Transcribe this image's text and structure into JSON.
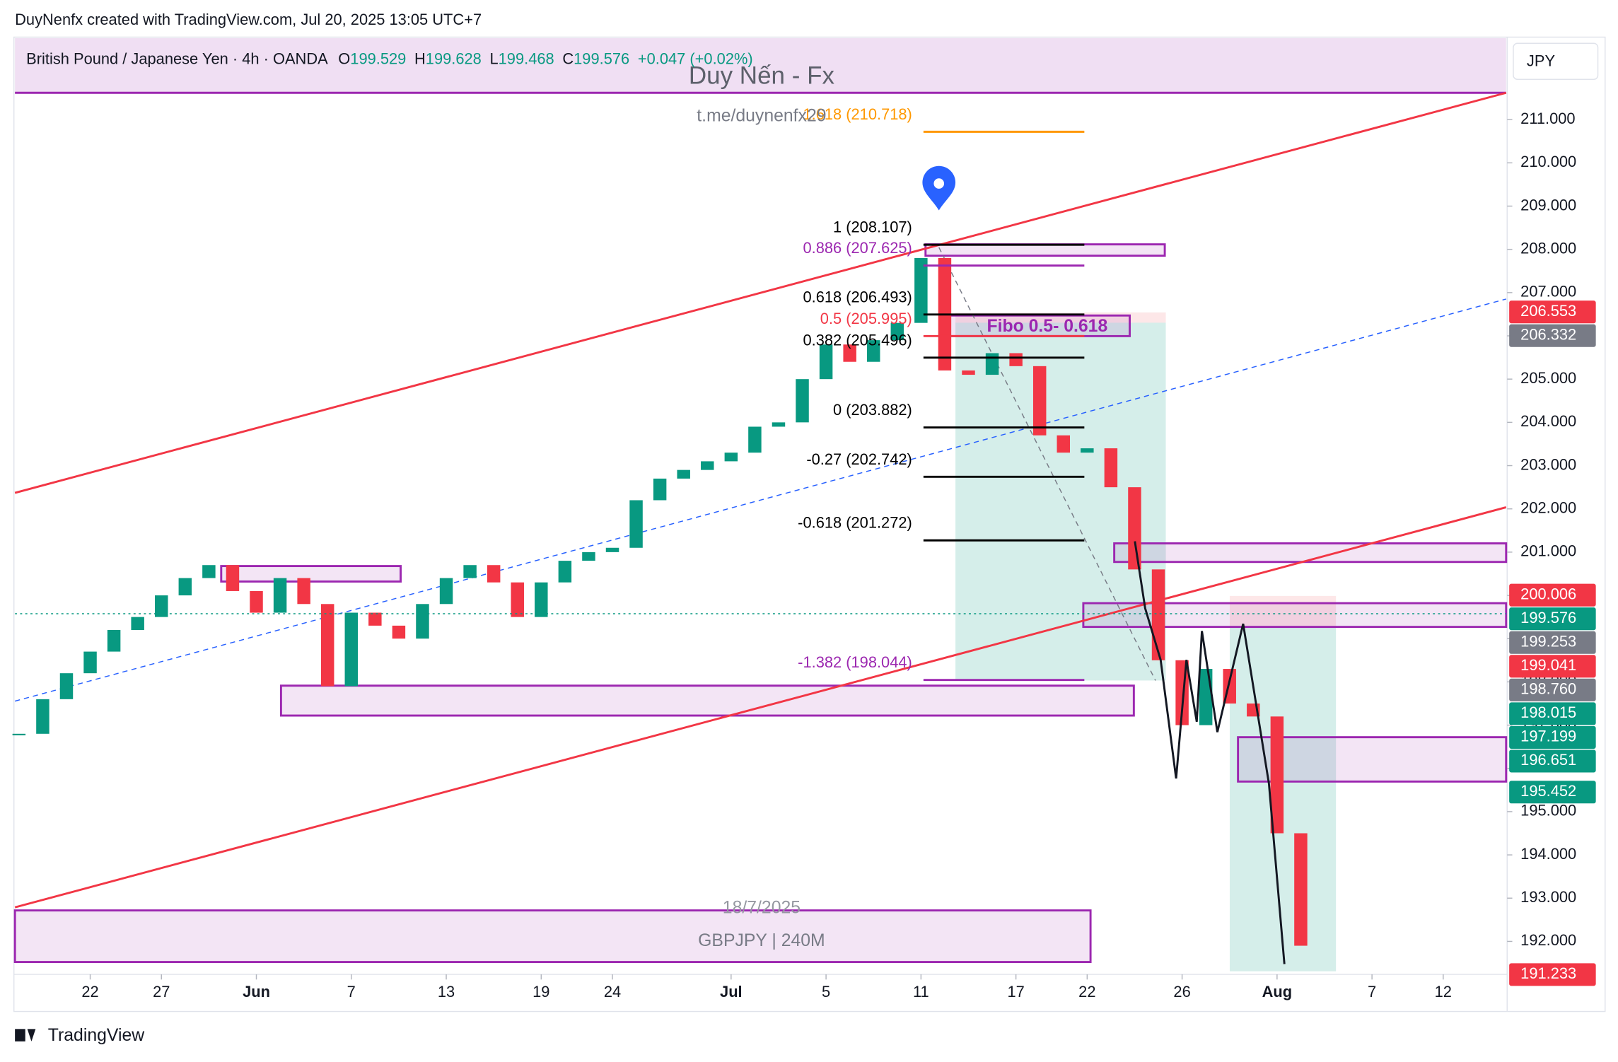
{
  "header": {
    "text": "DuyNenfx created with TradingView.com, Jul 20, 2025 13:05 UTC+7"
  },
  "footer": {
    "logo": "TradingView"
  },
  "chart_data": {
    "type": "candlestick",
    "title": "British Pound / Japanese Yen · 4h · OANDA",
    "ohlc": [
      {
        "label": "O",
        "value": 199.529
      },
      {
        "label": "H",
        "value": 199.628
      },
      {
        "label": "L",
        "value": 199.468
      },
      {
        "label": "C",
        "value": 199.576
      }
    ],
    "change": "+0.047 (+0.02%)",
    "currency": "JPY",
    "watermark": [
      "Duy Nến - Fx",
      "t.me/duynenfx29"
    ],
    "annotations": [
      "18/7/2025",
      "GBPJPY | 240M",
      "Fibo 0.5- 0.618"
    ],
    "x": [
      -3,
      -2,
      -1,
      0,
      1,
      2,
      3,
      4,
      5,
      6,
      7,
      8,
      9,
      10,
      11,
      12,
      13,
      14,
      15,
      16,
      17,
      18,
      19,
      20,
      21,
      22,
      23,
      24,
      25,
      26,
      27,
      28,
      29,
      30,
      31,
      32,
      33,
      34,
      35,
      36,
      37,
      38,
      39,
      40,
      41,
      42,
      43,
      44,
      45,
      46,
      47,
      48,
      49,
      50,
      51
    ],
    "values": [
      196.8,
      197.6,
      198.2,
      198.7,
      199.2,
      199.5,
      200.0,
      200.4,
      200.7,
      200.1,
      199.6,
      200.4,
      199.8,
      197.9,
      199.6,
      199.3,
      199.0,
      199.8,
      200.4,
      200.7,
      200.3,
      199.5,
      200.3,
      200.8,
      201.0,
      201.1,
      202.2,
      202.7,
      202.9,
      203.1,
      203.3,
      203.9,
      204.0,
      205.0,
      205.8,
      205.4,
      205.9,
      206.3,
      207.8,
      205.2,
      205.1,
      205.6,
      205.3,
      203.7,
      203.3,
      203.4,
      202.5,
      200.6,
      198.5,
      197.0,
      198.3,
      197.5,
      197.2,
      194.5,
      191.9
    ],
    "up_color": "#089981",
    "down_color": "#f23645",
    "xlim": [
      -3.17,
      59.65
    ],
    "xticks": [
      {
        "value": 0,
        "label": "22"
      },
      {
        "value": 3,
        "label": "27"
      },
      {
        "value": 7,
        "label": "Jun"
      },
      {
        "value": 11,
        "label": "7"
      },
      {
        "value": 15,
        "label": "13"
      },
      {
        "value": 19,
        "label": "19"
      },
      {
        "value": 22,
        "label": "24"
      },
      {
        "value": 27,
        "label": "Jul"
      },
      {
        "value": 31,
        "label": "5"
      },
      {
        "value": 35,
        "label": "11"
      },
      {
        "value": 39,
        "label": "17"
      },
      {
        "value": 42,
        "label": "22"
      },
      {
        "value": 46,
        "label": "26"
      },
      {
        "value": 50,
        "label": "Aug"
      },
      {
        "value": 54,
        "label": "7"
      },
      {
        "value": 57,
        "label": "12"
      }
    ],
    "ylim": [
      191.238,
      212.883
    ],
    "yticks": [
      {
        "value": 192,
        "label": "192.000"
      },
      {
        "value": 193,
        "label": "193.000"
      },
      {
        "value": 194,
        "label": "194.000"
      },
      {
        "value": 195,
        "label": "195.000"
      },
      {
        "value": 196,
        "label": "196.000"
      },
      {
        "value": 197,
        "label": "197.000"
      },
      {
        "value": 198,
        "label": "198.000"
      },
      {
        "value": 199,
        "label": "199.000"
      },
      {
        "value": 200,
        "label": "200.000"
      },
      {
        "value": 201,
        "label": "201.000"
      },
      {
        "value": 202,
        "label": "202.000"
      },
      {
        "value": 203,
        "label": "203.000"
      },
      {
        "value": 204,
        "label": "204.000"
      },
      {
        "value": 205,
        "label": "205.000"
      },
      {
        "value": 206,
        "label": "206.000"
      },
      {
        "value": 207,
        "label": "207.000"
      },
      {
        "value": 208,
        "label": "208.000"
      },
      {
        "value": 209,
        "label": "209.000"
      },
      {
        "value": 210,
        "label": "210.000"
      },
      {
        "value": 211,
        "label": "211.000"
      }
    ],
    "fib_levels": [
      {
        "value": 210.718,
        "label": "1.618 (210.718)",
        "color": "#ff9800"
      },
      {
        "value": 208.107,
        "label": "1 (208.107)",
        "color": "#000000"
      },
      {
        "value": 207.625,
        "label": "0.886 (207.625)",
        "color": "#9c27b0"
      },
      {
        "value": 206.493,
        "label": "0.618 (206.493)",
        "color": "#000000"
      },
      {
        "value": 205.995,
        "label": "0.5 (205.995)",
        "color": "#f23645"
      },
      {
        "value": 205.496,
        "label": "0.382 (205.496)",
        "color": "#000000"
      },
      {
        "value": 203.882,
        "label": "0 (203.882)",
        "color": "#000000"
      },
      {
        "value": 202.742,
        "label": "-0.27 (202.742)",
        "color": "#000000"
      },
      {
        "value": 201.272,
        "label": "-0.618 (201.272)",
        "color": "#000000"
      },
      {
        "value": 198.044,
        "label": "-1.382 (198.044)",
        "color": "#9c27b0"
      }
    ],
    "price_labels": [
      {
        "value": 206.553,
        "label": "206.553",
        "color": "#f23645"
      },
      {
        "value": 206.332,
        "label": "206.332",
        "color": "#787b86"
      },
      {
        "value": 200.006,
        "label": "200.006",
        "color": "#f23645"
      },
      {
        "value": 199.576,
        "label": "199.576",
        "color": "#089981"
      },
      {
        "value": 199.253,
        "label": "199.253",
        "color": "#787b86"
      },
      {
        "value": 199.041,
        "label": "199.041",
        "color": "#f23645"
      },
      {
        "value": 198.76,
        "label": "198.760",
        "color": "#787b86"
      },
      {
        "value": 198.015,
        "label": "198.015",
        "color": "#089981"
      },
      {
        "value": 197.199,
        "label": "197.199",
        "color": "#089981"
      },
      {
        "value": 196.651,
        "label": "196.651",
        "color": "#089981"
      },
      {
        "value": 195.452,
        "label": "195.452",
        "color": "#089981"
      },
      {
        "value": 191.233,
        "label": "191.233",
        "color": "#f23645"
      }
    ]
  }
}
